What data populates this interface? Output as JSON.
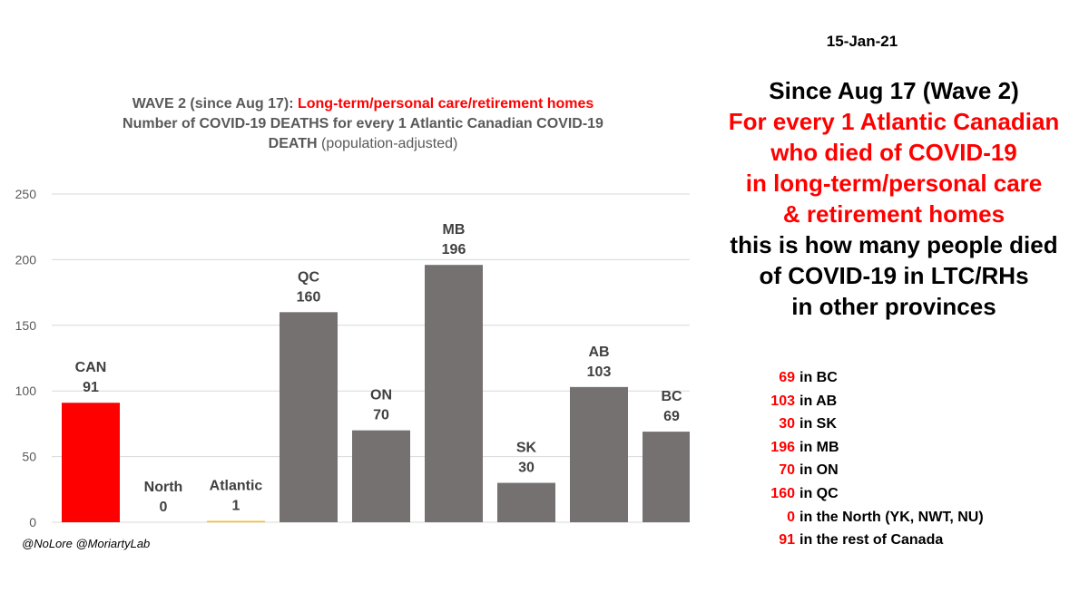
{
  "date": "15-Jan-21",
  "headline": {
    "line1": "Since Aug 17 (Wave 2)",
    "red_lines": [
      "For every 1 Atlantic Canadian",
      "who died of COVID-19",
      "in long-term/personal care",
      "& retirement homes"
    ],
    "black_lines": [
      "this is how many people died",
      "of COVID-19 in LTC/RHs",
      "in other provinces"
    ]
  },
  "summary": [
    {
      "value": "69",
      "label": "in BC"
    },
    {
      "value": "103",
      "label": "in AB"
    },
    {
      "value": "30",
      "label": "in SK"
    },
    {
      "value": "196",
      "label": "in MB"
    },
    {
      "value": "70",
      "label": "in ON"
    },
    {
      "value": "160",
      "label": "in QC"
    },
    {
      "value": "0",
      "label": "in the North (YK, NWT, NU)"
    },
    {
      "value": "91",
      "label": "in the rest of Canada"
    }
  ],
  "credit": "@NoLore @MoriartyLab",
  "colors": {
    "highlight": "#ff0000",
    "atlantic": "#ffc000",
    "default": "#767171",
    "grid": "#d9d9d9",
    "axis_text": "#595959"
  },
  "chart_data": {
    "type": "bar",
    "title_parts": {
      "prefix": "WAVE 2 (since Aug 17): ",
      "highlight": "Long-term/personal care/retirement homes",
      "line2": "Number of COVID-19 DEATHS for every 1 Atlantic Canadian COVID-19",
      "line3_bold": "DEATH",
      "line3_normal": " (population-adjusted)"
    },
    "categories": [
      "CAN",
      "North",
      "Atlantic",
      "QC",
      "ON",
      "MB",
      "SK",
      "AB",
      "BC"
    ],
    "values": [
      91,
      0,
      1,
      160,
      70,
      196,
      30,
      103,
      69
    ],
    "bar_colors": [
      "#ff0000",
      "#767171",
      "#ffc000",
      "#767171",
      "#767171",
      "#767171",
      "#767171",
      "#767171",
      "#767171"
    ],
    "ylim": [
      0,
      250
    ],
    "yticks": [
      0,
      50,
      100,
      150,
      200,
      250
    ],
    "grid": true,
    "xlabel": "",
    "ylabel": ""
  }
}
